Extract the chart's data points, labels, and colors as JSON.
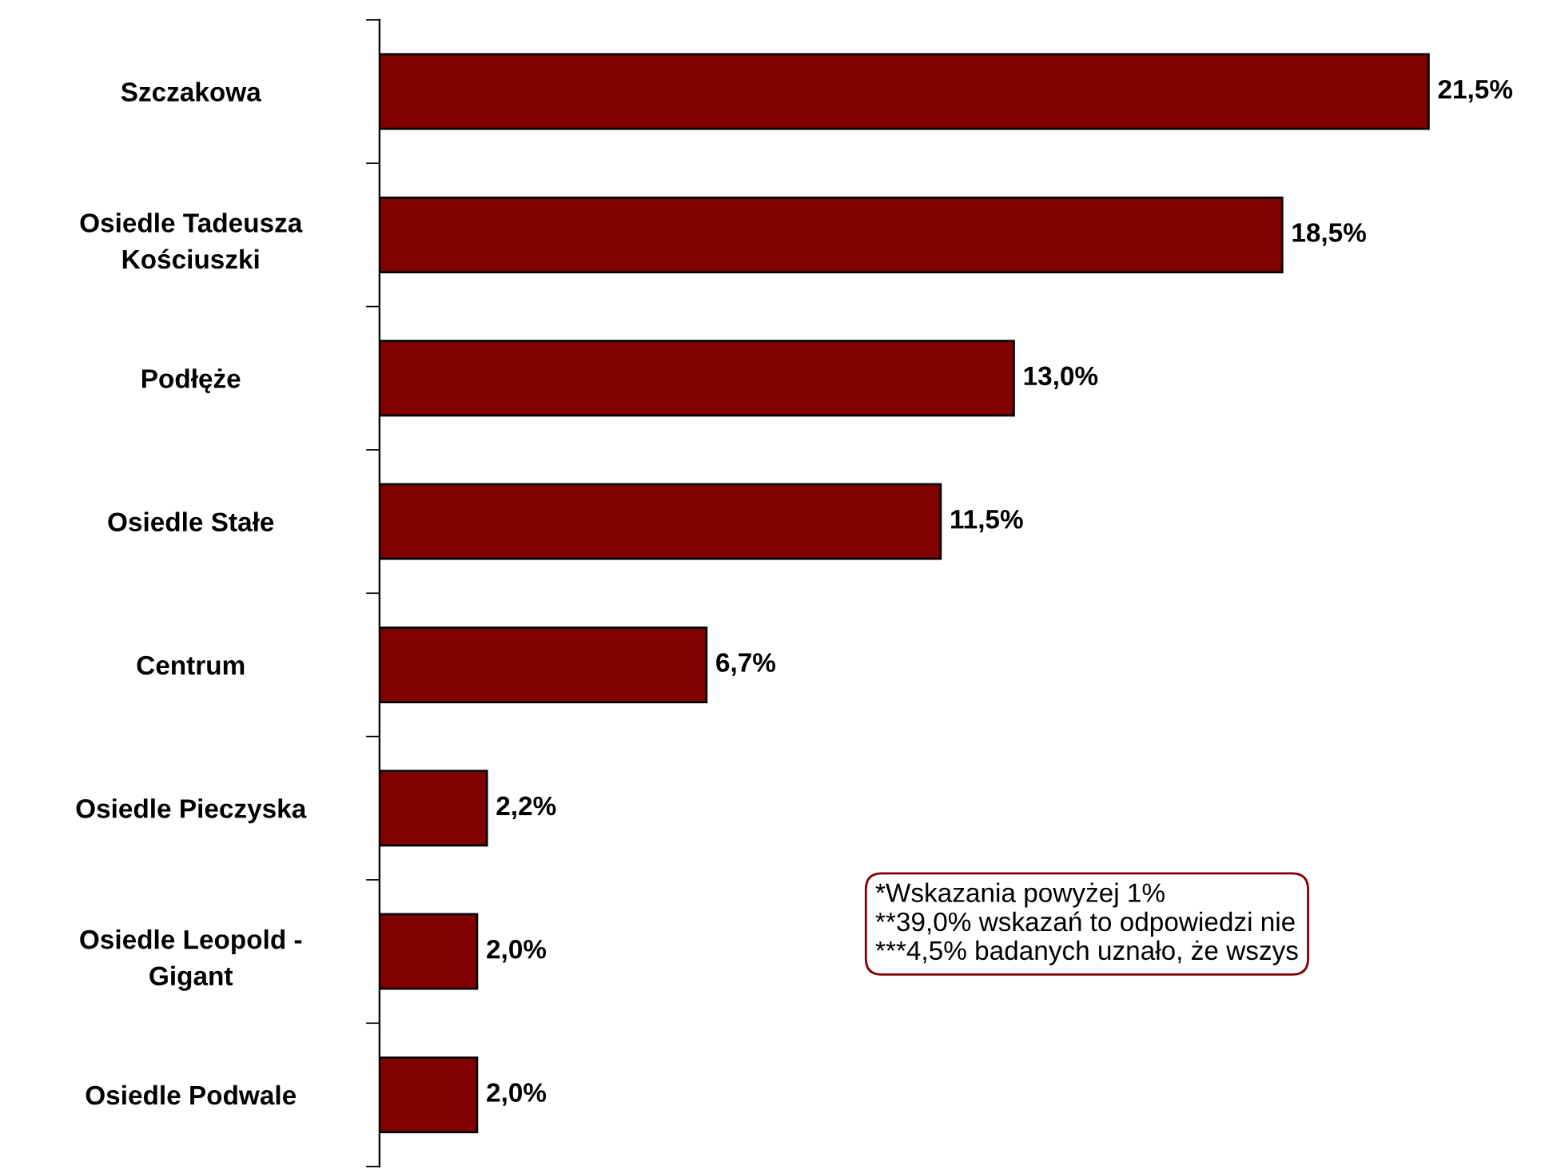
{
  "chart_data": {
    "type": "bar",
    "orientation": "horizontal",
    "categories": [
      "Szczakowa",
      "Osiedle Tadeusza\nKościuszki",
      "Podłęże",
      "Osiedle Stałe",
      "Centrum",
      "Osiedle Pieczyska",
      "Osiedle Leopold -\nGigant",
      "Osiedle Podwale"
    ],
    "values": [
      21.5,
      18.5,
      13.0,
      11.5,
      6.7,
      2.2,
      2.0,
      2.0
    ],
    "value_labels": [
      "21,5%",
      "18,5%",
      "13,0%",
      "11,5%",
      "6,7%",
      "2,2%",
      "2,0%",
      "2,0%"
    ],
    "color": "#800000",
    "tick_labels": "y",
    "grid": false,
    "legend": false,
    "annotations": [
      "*Wskazania powyżej 1%",
      "**39,0% wskazań to odpowiedzi nie",
      "***4,5% badanych uznało, że wszys"
    ]
  }
}
